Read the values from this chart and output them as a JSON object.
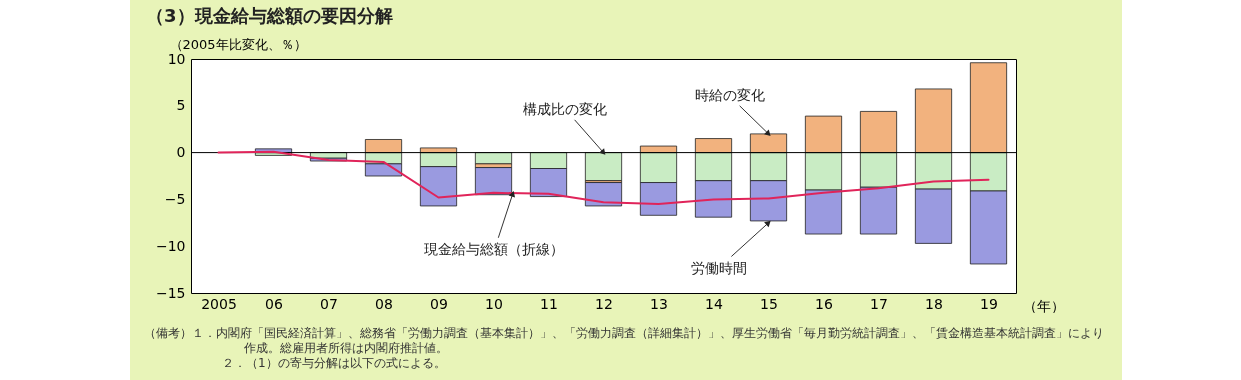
{
  "chart_data": {
    "type": "bar",
    "stacked": true,
    "title": "（3）現金給与総額の要因分解",
    "ylabel": "（2005年比変化、％）",
    "xlabel": "（年）",
    "categories": [
      "2005",
      "06",
      "07",
      "08",
      "09",
      "10",
      "11",
      "12",
      "13",
      "14",
      "15",
      "16",
      "17",
      "18",
      "19"
    ],
    "series": [
      {
        "name": "構成比の変化",
        "color": "#c9ecc4",
        "values": [
          null,
          -0.3,
          -0.6,
          -1.2,
          -1.5,
          -1.2,
          -1.7,
          -3.0,
          -3.2,
          -3.0,
          -3.0,
          -4.0,
          -3.7,
          -3.9,
          -4.1
        ]
      },
      {
        "name": "時給の変化",
        "color": "#f2b27e",
        "values": [
          null,
          null,
          null,
          1.4,
          0.5,
          -0.4,
          null,
          -0.2,
          0.7,
          1.5,
          2.0,
          3.9,
          4.4,
          6.8,
          9.6
        ]
      },
      {
        "name": "労働時間",
        "color": "#9a9ae0",
        "values": [
          null,
          0.4,
          -0.3,
          -1.3,
          -4.2,
          -2.9,
          -3.0,
          -2.5,
          -3.5,
          -3.9,
          -4.3,
          -4.7,
          -5.0,
          -5.8,
          -7.8
        ]
      },
      {
        "name": "現金給与総額（折線）",
        "type": "line",
        "color": "#e0245a",
        "values": [
          0,
          0.1,
          -0.8,
          -1.0,
          -4.8,
          -4.3,
          -4.4,
          -5.3,
          -5.5,
          -5.0,
          -4.9,
          -4.3,
          -3.8,
          -3.1,
          -2.9
        ]
      }
    ],
    "ylim": [
      -15,
      10
    ],
    "yticks": [
      -15,
      -10,
      -5,
      0,
      5,
      10
    ],
    "grid": false,
    "ref_lines": [
      {
        "axis": "y",
        "value": 0,
        "color": "#000000"
      }
    ],
    "annotations": [
      "（備考）１．内閣府「国民経済計算」、総務省「労働力調査（基本集計）」、「労働力調査（詳細集計）」、厚生労働省「毎月勤労統計調査」、「賃金構造基本統計調査」により作成。総雇用者所得は内閣府推計値。",
      "２．（1）の寄与分解は以下の式による。"
    ]
  }
}
